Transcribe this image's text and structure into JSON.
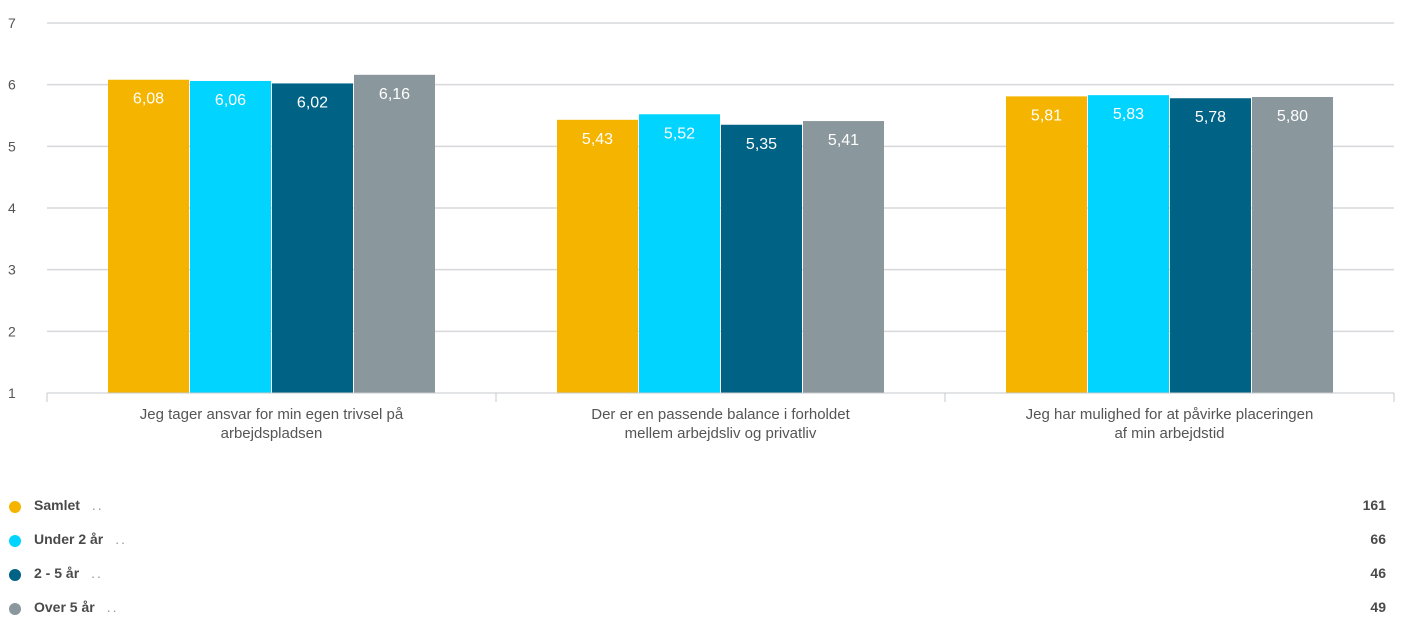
{
  "chart_data": {
    "type": "bar",
    "title": "",
    "xlabel": "",
    "ylabel": "",
    "ylim": [
      1,
      7
    ],
    "yticks": [
      "1",
      "2",
      "3",
      "4",
      "5",
      "6",
      "7"
    ],
    "grid": true,
    "categories": [
      [
        "Jeg tager ansvar for min egen trivsel på",
        "arbejdspladsen"
      ],
      [
        "Der er en passende balance i forholdet",
        "mellem arbejdsliv og privatliv"
      ],
      [
        "Jeg har mulighed for at påvirke placeringen",
        "af min arbejdstid"
      ]
    ],
    "series": [
      {
        "name": "Samlet",
        "color": "#F5B400",
        "values": [
          6.08,
          5.43,
          5.81
        ],
        "labels": [
          "6,08",
          "5,43",
          "5,81"
        ]
      },
      {
        "name": "Under 2 år",
        "color": "#00D4FF",
        "values": [
          6.06,
          5.52,
          5.83
        ],
        "labels": [
          "6,06",
          "5,52",
          "5,83"
        ]
      },
      {
        "name": "2 - 5 år",
        "color": "#006285",
        "values": [
          6.02,
          5.35,
          5.78
        ],
        "labels": [
          "6,02",
          "5,35",
          "5,78"
        ]
      },
      {
        "name": "Over 5 år",
        "color": "#8A979C",
        "values": [
          6.16,
          5.41,
          5.8
        ],
        "labels": [
          "6,16",
          "5,41",
          "5,80"
        ]
      }
    ]
  },
  "legend": {
    "items": [
      {
        "label": "Samlet",
        "dots": "..",
        "count": "161",
        "color": "#F5B400"
      },
      {
        "label": "Under 2 år",
        "dots": "..",
        "count": "66",
        "color": "#00D4FF"
      },
      {
        "label": "2 - 5 år",
        "dots": "..",
        "count": "46",
        "color": "#006285"
      },
      {
        "label": "Over 5 år",
        "dots": "..",
        "count": "49",
        "color": "#8A979C"
      }
    ]
  }
}
